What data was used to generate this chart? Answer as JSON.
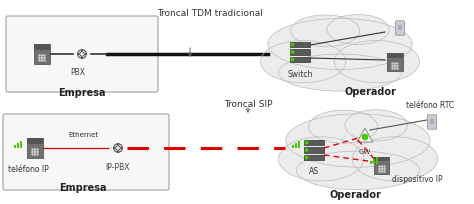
{
  "bg_color": "#ffffff",
  "title_top": "Troncal TDM tradicional",
  "title_bottom": "Troncal SIP",
  "empresa_top_label": "Empresa",
  "empresa_bot_label": "Empresa",
  "operador_top_label": "Operador",
  "operador_bot_label": "Operador",
  "pbx_label": "PBX",
  "switch_label": "Switch",
  "telefono_ip_label": "teléfono IP",
  "ip_pbx_label": "IP-PBX",
  "ethernet_label": "Ethernet",
  "as_label": "AS",
  "gw_label": "GW",
  "telefono_rtc_label": "teléfono RTC",
  "dispositivo_ip_label": "dispositivo IP",
  "box_color": "#f7f7f7",
  "box_border": "#aaaaaa",
  "red_dash_color": "#e00000",
  "black_line_color": "#111111",
  "cloud_color": "#ececec",
  "cloud_border": "#bbbbbb",
  "green_color": "#44cc00",
  "device_color": "#777777",
  "device_border": "#444444",
  "font_size": 5.5,
  "bold_font_size": 7.0,
  "title_font_size": 6.5
}
